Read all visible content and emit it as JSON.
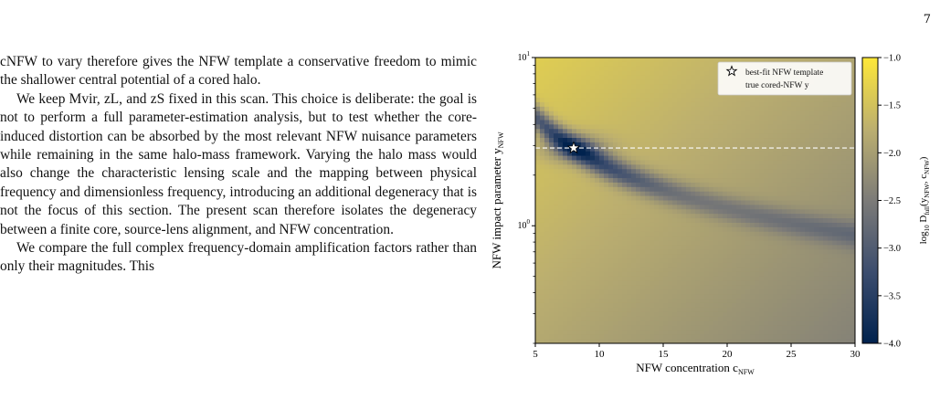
{
  "page": {
    "number": "7"
  },
  "body_text": {
    "p1": "cNFW to vary therefore gives the NFW template a conservative freedom to mimic the shallower central potential of a cored halo.",
    "p2": "We keep Mvir, zL, and zS fixed in this scan. This choice is deliberate: the goal is not to perform a full parameter-estimation analysis, but to test whether the core-induced distortion can be absorbed by the most relevant NFW nuisance parameters while remaining in the same halo-mass framework. Varying the halo mass would also change the characteristic lensing scale and the mapping between physical frequency and dimensionless frequency, introducing an additional degeneracy that is not the focus of this section. The present scan therefore isolates the degeneracy between a finite core, source-lens alignment, and NFW concentration.",
    "p3": "We compare the full complex frequency-domain amplification factors rather than only their magnitudes. This"
  },
  "chart_data": {
    "type": "heatmap",
    "xlabel": "NFW concentration c_NFW",
    "ylabel": "NFW impact parameter y_NFW",
    "colorbar_label": "log10 D_full(y_NFW, c_NFW)",
    "xlim": [
      5,
      30
    ],
    "ylim": [
      0.2,
      10
    ],
    "yscale": "log",
    "xticks": [
      "5",
      "10",
      "15",
      "20",
      "25",
      "30"
    ],
    "yticks": [
      "10^1",
      "10^0"
    ],
    "colorbar_range": [
      -4.0,
      -1.0
    ],
    "colorbar_ticks": [
      "−1.0",
      "−1.5",
      "−2.0",
      "−2.5",
      "−3.0",
      "−3.5",
      "−4.0"
    ],
    "colormap": "cividis",
    "best_fit": {
      "x": 8.0,
      "y": 2.9
    },
    "true_y_line": 2.9,
    "legend": {
      "placement": "top-right",
      "entries": [
        "best-fit NFW template",
        "true cored-NFW y"
      ]
    },
    "colors": {
      "dark": "#00224e",
      "mid": "#7c7b78",
      "bright": "#fee838",
      "dashed_line": "#ffffff"
    }
  }
}
